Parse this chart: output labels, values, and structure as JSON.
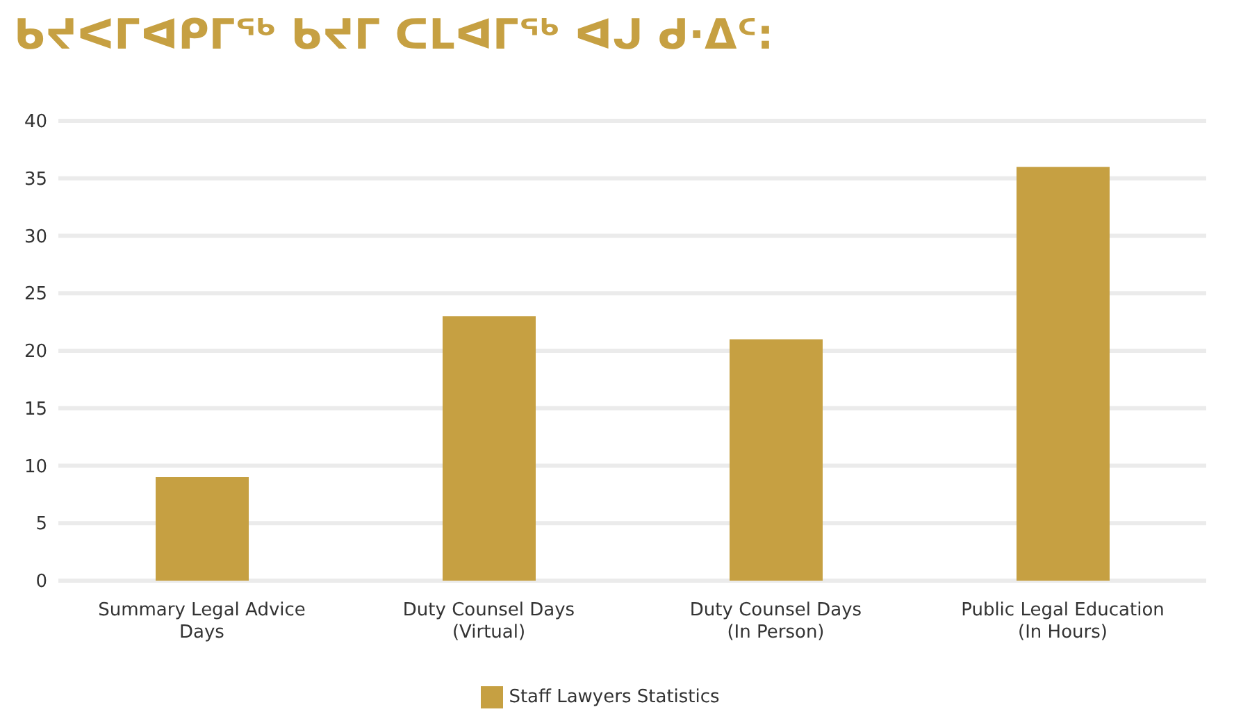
{
  "chart_data": {
    "type": "bar",
    "title": "ᑲᔪᐸᒥᐊᑭᒥᖅ ᑲᔪᒥ ᑕᒪᐊᒥᖅ ᐊᒍ ᑯ·ᐃᑦ:",
    "categories": [
      "Summary Legal Advice Days",
      "Duty Counsel Days (Virtual)",
      "Duty Counsel Days (In Person)",
      "Public Legal Education (In Hours)"
    ],
    "series": [
      {
        "name": "Staff Lawyers Statistics",
        "color": "#c6a042",
        "values": [
          9,
          23,
          21,
          36
        ]
      }
    ],
    "ylim": [
      0,
      40
    ],
    "yticks": [
      0,
      5,
      10,
      15,
      20,
      25,
      30,
      35,
      40
    ],
    "grid": "y",
    "legend": "bottom"
  }
}
